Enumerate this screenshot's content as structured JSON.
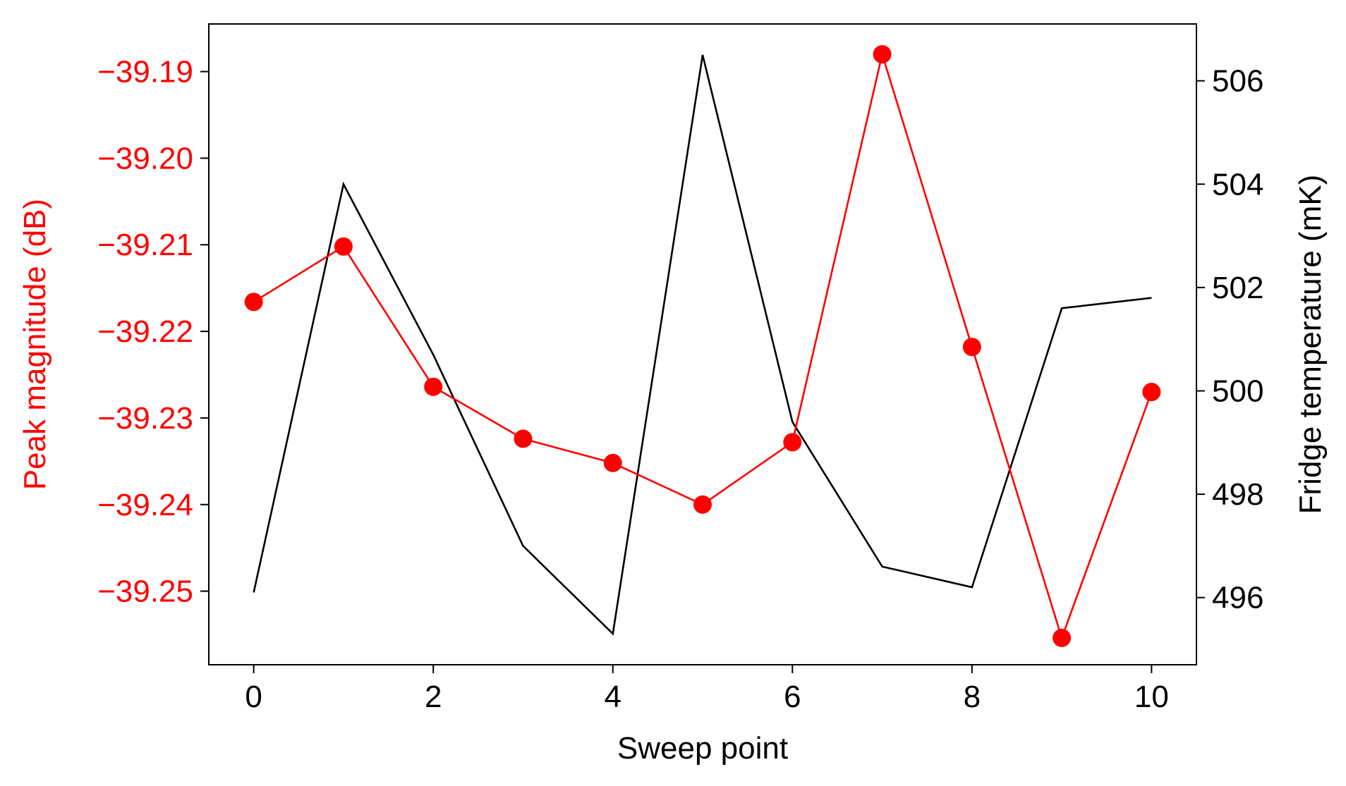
{
  "chart_data": {
    "type": "line",
    "xlabel": "Sweep point",
    "ylabel_left": "Peak magnitude (dB)",
    "ylabel_right": "Fridge temperature (mK)",
    "x": [
      0,
      1,
      2,
      3,
      4,
      5,
      6,
      7,
      8,
      9,
      10
    ],
    "x_ticks": [
      0,
      2,
      4,
      6,
      8,
      10
    ],
    "x_tick_labels": [
      "0",
      "2",
      "4",
      "6",
      "8",
      "10"
    ],
    "xlim": [
      -0.5,
      10.5
    ],
    "ylim_left": [
      -39.2585,
      -39.1845
    ],
    "ylim_right": [
      494.7,
      507.1
    ],
    "y_left_ticks": [
      -39.25,
      -39.24,
      -39.23,
      -39.22,
      -39.21,
      -39.2,
      -39.19
    ],
    "y_left_tick_labels": [
      "−39.25",
      "−39.24",
      "−39.23",
      "−39.22",
      "−39.21",
      "−39.20",
      "−39.19"
    ],
    "y_right_ticks": [
      496,
      498,
      500,
      502,
      504,
      506
    ],
    "y_right_tick_labels": [
      "496",
      "498",
      "500",
      "502",
      "504",
      "506"
    ],
    "grid": false,
    "series": [
      {
        "axis": "left",
        "color": "#ff0000",
        "marker": "circle",
        "values": [
          -39.2166,
          -39.2102,
          -39.2264,
          -39.2324,
          -39.2352,
          -39.24,
          -39.2328,
          -39.188,
          -39.2218,
          -39.2554,
          -39.227
        ]
      },
      {
        "axis": "right",
        "color": "#000000",
        "marker": "none",
        "values": [
          496.1,
          504.0,
          500.7,
          497.0,
          495.3,
          506.5,
          499.4,
          496.6,
          496.2,
          501.6,
          501.8
        ]
      }
    ]
  }
}
